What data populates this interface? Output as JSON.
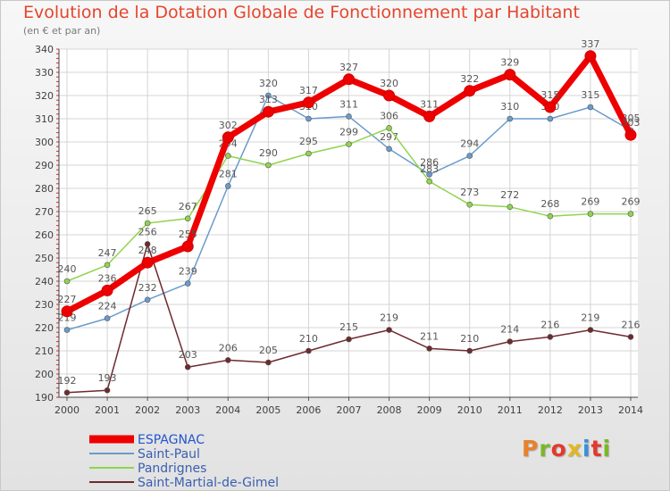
{
  "title": "Evolution de la Dotation Globale de Fonctionnement par Habitant",
  "subtitle": "(en € et par an)",
  "logo_text": "Proxiti",
  "logo_colors": [
    "#e9812a",
    "#7ab728",
    "#e23a2b",
    "#e3b722",
    "#3a8fd6",
    "#e23a2b",
    "#7ab728"
  ],
  "chart_data": {
    "type": "line",
    "x": [
      "2000",
      "2001",
      "2002",
      "2003",
      "2004",
      "2005",
      "2006",
      "2007",
      "2008",
      "2009",
      "2010",
      "2011",
      "2012",
      "2013",
      "2014"
    ],
    "yticks": [
      190,
      200,
      210,
      220,
      230,
      240,
      250,
      260,
      270,
      280,
      290,
      300,
      310,
      320,
      330,
      340
    ],
    "ylim": [
      190,
      340
    ],
    "grid": true,
    "legend_position": "bottom-left",
    "series": [
      {
        "name": "ESPAGNAC",
        "color": "#ee0000",
        "emphasis": true,
        "values": [
          227,
          236,
          248,
          255,
          302,
          313,
          317,
          327,
          320,
          311,
          322,
          329,
          315,
          337,
          303
        ]
      },
      {
        "name": "Saint-Paul",
        "color": "#6a9bcb",
        "values": [
          219,
          224,
          232,
          239,
          281,
          320,
          310,
          311,
          297,
          286,
          294,
          310,
          310,
          315,
          305
        ]
      },
      {
        "name": "Pandrignes",
        "color": "#8fd44e",
        "values": [
          240,
          247,
          265,
          267,
          294,
          290,
          295,
          299,
          306,
          283,
          273,
          272,
          268,
          269,
          269
        ]
      },
      {
        "name": "Saint-Martial-de-Gimel",
        "color": "#6e2a2e",
        "values": [
          192,
          193,
          256,
          203,
          206,
          205,
          210,
          215,
          219,
          211,
          210,
          214,
          216,
          219,
          216
        ]
      }
    ]
  }
}
